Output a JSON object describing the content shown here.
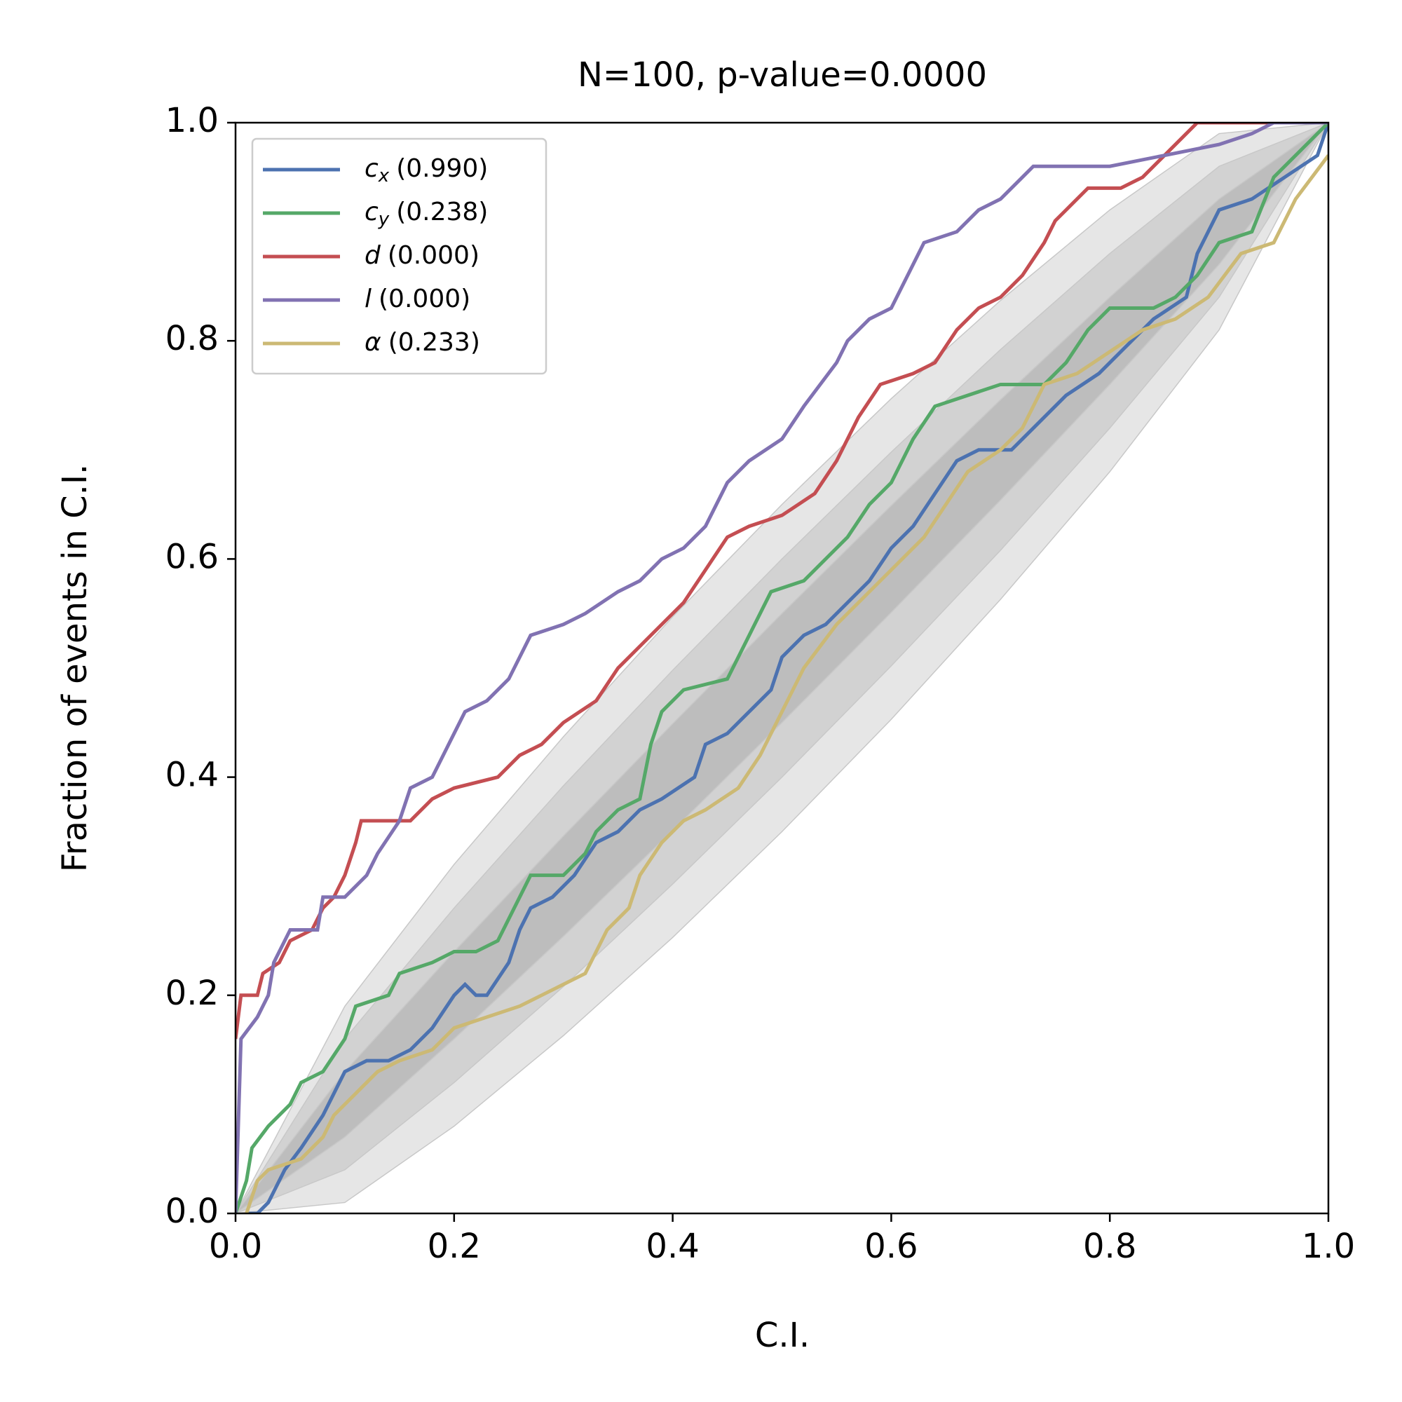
{
  "chart_data": {
    "type": "line",
    "title": "N=100, p-value=0.0000",
    "xlabel": "C.I.",
    "ylabel": "Fraction of events in C.I.",
    "xlim": [
      0,
      1
    ],
    "ylim": [
      0,
      1
    ],
    "xticks": [
      {
        "value": 0,
        "label": "0.0"
      },
      0.2,
      0.4,
      0.6,
      0.8,
      {
        "value": 1,
        "label": "1.0"
      }
    ],
    "yticks": [
      {
        "value": 0,
        "label": "0.0"
      },
      0.2,
      0.4,
      0.6,
      0.8,
      {
        "value": 1,
        "label": "1.0"
      }
    ],
    "legend": "upper left",
    "bands": [
      {
        "color": "#e6e6e6",
        "x": [
          0,
          0.1,
          0.2,
          0.3,
          0.4,
          0.5,
          0.6,
          0.7,
          0.8,
          0.9,
          1
        ],
        "lower": [
          0,
          0.01,
          0.08,
          0.163,
          0.253,
          0.35,
          0.453,
          0.563,
          0.68,
          0.81,
          1
        ],
        "upper": [
          0,
          0.19,
          0.32,
          0.437,
          0.547,
          0.65,
          0.747,
          0.837,
          0.92,
          0.99,
          1
        ]
      },
      {
        "color": "#d2d2d2",
        "x": [
          0,
          0.1,
          0.2,
          0.3,
          0.4,
          0.5,
          0.6,
          0.7,
          0.8,
          0.9,
          1
        ],
        "lower": [
          0,
          0.04,
          0.12,
          0.208,
          0.302,
          0.4,
          0.502,
          0.608,
          0.72,
          0.84,
          1
        ],
        "upper": [
          0,
          0.16,
          0.28,
          0.392,
          0.498,
          0.6,
          0.698,
          0.792,
          0.88,
          0.96,
          1
        ]
      },
      {
        "color": "#bdbdbd",
        "x": [
          0,
          0.1,
          0.2,
          0.3,
          0.4,
          0.5,
          0.6,
          0.7,
          0.8,
          0.9,
          1
        ],
        "lower": [
          0,
          0.07,
          0.16,
          0.254,
          0.351,
          0.45,
          0.551,
          0.654,
          0.76,
          0.87,
          1
        ],
        "upper": [
          0,
          0.13,
          0.24,
          0.346,
          0.449,
          0.55,
          0.649,
          0.746,
          0.84,
          0.93,
          1
        ]
      }
    ],
    "series": [
      {
        "name": {
          "symbol": "c",
          "subscript": "x",
          "stat": "(0.990)"
        },
        "color": "#4c72b0",
        "x": [
          0.01,
          0.02,
          0.03,
          0.045,
          0.06,
          0.08,
          0.1,
          0.12,
          0.14,
          0.16,
          0.18,
          0.2,
          0.21,
          0.22,
          0.23,
          0.25,
          0.26,
          0.27,
          0.29,
          0.31,
          0.33,
          0.35,
          0.37,
          0.39,
          0.42,
          0.43,
          0.45,
          0.47,
          0.49,
          0.5,
          0.52,
          0.54,
          0.56,
          0.58,
          0.6,
          0.62,
          0.64,
          0.66,
          0.68,
          0.71,
          0.73,
          0.76,
          0.79,
          0.81,
          0.84,
          0.87,
          0.88,
          0.9,
          0.93,
          0.96,
          0.99,
          1.0
        ],
        "y": [
          0,
          0,
          0.01,
          0.04,
          0.06,
          0.09,
          0.13,
          0.14,
          0.14,
          0.15,
          0.17,
          0.2,
          0.21,
          0.2,
          0.2,
          0.23,
          0.26,
          0.28,
          0.29,
          0.31,
          0.34,
          0.35,
          0.37,
          0.38,
          0.4,
          0.43,
          0.44,
          0.46,
          0.48,
          0.51,
          0.53,
          0.54,
          0.56,
          0.58,
          0.61,
          0.63,
          0.66,
          0.69,
          0.7,
          0.7,
          0.72,
          0.75,
          0.77,
          0.79,
          0.82,
          0.84,
          0.88,
          0.92,
          0.93,
          0.95,
          0.97,
          1.0
        ]
      },
      {
        "name": {
          "symbol": "c",
          "subscript": "y",
          "stat": "(0.238)"
        },
        "color": "#55a868",
        "x": [
          0,
          0.01,
          0.015,
          0.03,
          0.05,
          0.06,
          0.08,
          0.1,
          0.11,
          0.14,
          0.15,
          0.18,
          0.2,
          0.22,
          0.24,
          0.25,
          0.27,
          0.3,
          0.32,
          0.33,
          0.35,
          0.37,
          0.38,
          0.39,
          0.41,
          0.45,
          0.47,
          0.49,
          0.52,
          0.54,
          0.56,
          0.58,
          0.6,
          0.62,
          0.64,
          0.67,
          0.7,
          0.74,
          0.76,
          0.78,
          0.8,
          0.84,
          0.86,
          0.88,
          0.9,
          0.93,
          0.95,
          0.98,
          1.0
        ],
        "y": [
          0,
          0.03,
          0.06,
          0.08,
          0.1,
          0.12,
          0.13,
          0.16,
          0.19,
          0.2,
          0.22,
          0.23,
          0.24,
          0.24,
          0.25,
          0.27,
          0.31,
          0.31,
          0.33,
          0.35,
          0.37,
          0.38,
          0.43,
          0.46,
          0.48,
          0.49,
          0.53,
          0.57,
          0.58,
          0.6,
          0.62,
          0.65,
          0.67,
          0.71,
          0.74,
          0.75,
          0.76,
          0.76,
          0.78,
          0.81,
          0.83,
          0.83,
          0.84,
          0.86,
          0.89,
          0.9,
          0.95,
          0.98,
          1.0
        ]
      },
      {
        "name": {
          "symbol": "d",
          "stat": "(0.000)"
        },
        "color": "#c44e52",
        "x": [
          0,
          0.005,
          0.02,
          0.025,
          0.04,
          0.05,
          0.07,
          0.08,
          0.09,
          0.1,
          0.11,
          0.115,
          0.16,
          0.18,
          0.2,
          0.24,
          0.26,
          0.28,
          0.3,
          0.33,
          0.35,
          0.37,
          0.39,
          0.41,
          0.43,
          0.45,
          0.47,
          0.5,
          0.53,
          0.55,
          0.57,
          0.59,
          0.62,
          0.64,
          0.66,
          0.68,
          0.7,
          0.72,
          0.74,
          0.75,
          0.76,
          0.78,
          0.81,
          0.83,
          0.85,
          0.87,
          0.88,
          1.0
        ],
        "y": [
          0.16,
          0.2,
          0.2,
          0.22,
          0.23,
          0.25,
          0.26,
          0.28,
          0.29,
          0.31,
          0.34,
          0.36,
          0.36,
          0.38,
          0.39,
          0.4,
          0.42,
          0.43,
          0.45,
          0.47,
          0.5,
          0.52,
          0.54,
          0.56,
          0.59,
          0.62,
          0.63,
          0.64,
          0.66,
          0.69,
          0.73,
          0.76,
          0.77,
          0.78,
          0.81,
          0.83,
          0.84,
          0.86,
          0.89,
          0.91,
          0.92,
          0.94,
          0.94,
          0.95,
          0.97,
          0.99,
          1.0,
          1.0
        ]
      },
      {
        "name": {
          "symbol": "l",
          "stat": "(0.000)"
        },
        "color": "#8172b2",
        "x": [
          0,
          0.005,
          0.02,
          0.03,
          0.035,
          0.05,
          0.075,
          0.08,
          0.1,
          0.12,
          0.13,
          0.15,
          0.16,
          0.18,
          0.195,
          0.21,
          0.23,
          0.25,
          0.27,
          0.3,
          0.32,
          0.35,
          0.37,
          0.39,
          0.41,
          0.43,
          0.45,
          0.47,
          0.5,
          0.52,
          0.55,
          0.56,
          0.58,
          0.6,
          0.62,
          0.63,
          0.66,
          0.68,
          0.7,
          0.72,
          0.73,
          0.8,
          0.85,
          0.9,
          0.93,
          0.95,
          1.0
        ],
        "y": [
          0,
          0.16,
          0.18,
          0.2,
          0.23,
          0.26,
          0.26,
          0.29,
          0.29,
          0.31,
          0.33,
          0.36,
          0.39,
          0.4,
          0.43,
          0.46,
          0.47,
          0.49,
          0.53,
          0.54,
          0.55,
          0.57,
          0.58,
          0.6,
          0.61,
          0.63,
          0.67,
          0.69,
          0.71,
          0.74,
          0.78,
          0.8,
          0.82,
          0.83,
          0.87,
          0.89,
          0.9,
          0.92,
          0.93,
          0.95,
          0.96,
          0.96,
          0.97,
          0.98,
          0.99,
          1.0,
          1.0
        ]
      },
      {
        "name": {
          "symbol": "α",
          "stat": "(0.233)"
        },
        "color": "#ccb974",
        "x": [
          0.01,
          0.02,
          0.03,
          0.06,
          0.08,
          0.09,
          0.11,
          0.13,
          0.15,
          0.18,
          0.2,
          0.23,
          0.26,
          0.28,
          0.3,
          0.32,
          0.34,
          0.36,
          0.37,
          0.39,
          0.41,
          0.43,
          0.46,
          0.48,
          0.5,
          0.52,
          0.55,
          0.57,
          0.6,
          0.63,
          0.65,
          0.67,
          0.7,
          0.72,
          0.74,
          0.77,
          0.8,
          0.83,
          0.86,
          0.89,
          0.92,
          0.95,
          0.97,
          1.0
        ],
        "y": [
          0,
          0.03,
          0.04,
          0.05,
          0.07,
          0.09,
          0.11,
          0.13,
          0.14,
          0.15,
          0.17,
          0.18,
          0.19,
          0.2,
          0.21,
          0.22,
          0.26,
          0.28,
          0.31,
          0.34,
          0.36,
          0.37,
          0.39,
          0.42,
          0.46,
          0.5,
          0.54,
          0.56,
          0.59,
          0.62,
          0.65,
          0.68,
          0.7,
          0.72,
          0.76,
          0.77,
          0.79,
          0.81,
          0.82,
          0.84,
          0.88,
          0.89,
          0.93,
          0.97
        ]
      }
    ]
  }
}
